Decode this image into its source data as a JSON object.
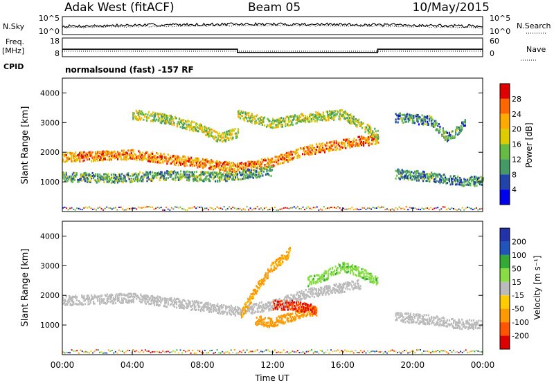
{
  "header": {
    "station": "Adak West (fitACF)",
    "beam": "Beam 05",
    "date": "10/May/2015"
  },
  "summary_panels": {
    "nsky_label": "N.Sky",
    "nsky_ticks": [
      "10^5",
      "10^0"
    ],
    "nsearch_label": "N.Search",
    "freq_label_line1": "Freq.",
    "freq_label_line2": "[MHz]",
    "freq_ticks": [
      "18",
      "8"
    ],
    "nave_label": "Nave",
    "nave_ticks": [
      "60",
      "0"
    ],
    "cpid_label": "CPID",
    "cpid_text": "normalsound (fast) -157 RF"
  },
  "chart_data": [
    {
      "type": "line",
      "panel": "freq",
      "ylabel": "Freq. [MHz]",
      "ylim": [
        8,
        18
      ],
      "x_hours": [
        0,
        10,
        10,
        18,
        18,
        24
      ],
      "values": [
        12,
        12,
        10.2,
        10.2,
        12,
        12
      ]
    },
    {
      "type": "heatmap",
      "panel": "power",
      "ylabel": "Slant Range [km]",
      "xlabel": "",
      "xlim_hours": [
        0,
        24
      ],
      "ylim": [
        0,
        4500
      ],
      "yticks": [
        "1000",
        "2000",
        "3000",
        "4000"
      ],
      "colorbar_label": "Power [dB]",
      "colorbar_ticks": [
        "28",
        "24",
        "20",
        "16",
        "12",
        "8",
        "4"
      ],
      "colors": [
        "#e00000",
        "#ff6600",
        "#ffaa00",
        "#ddcc00",
        "#66bb44",
        "#449966",
        "#2244aa",
        "#0000ee"
      ],
      "bands": [
        {
          "t": [
            0,
            4,
            8,
            10,
            12,
            14,
            17,
            18
          ],
          "range_km": [
            1850,
            1950,
            1650,
            1500,
            1700,
            2100,
            2400,
            2450
          ],
          "value_db": 20
        },
        {
          "t": [
            0,
            3,
            6,
            9,
            12
          ],
          "range_km": [
            1200,
            1150,
            1250,
            1200,
            1400
          ],
          "value_db": 8
        },
        {
          "t": [
            4,
            6,
            8,
            9,
            10
          ],
          "range_km": [
            3300,
            3150,
            2800,
            2500,
            2700
          ],
          "value_db": 12
        },
        {
          "t": [
            10,
            12,
            14,
            16,
            18
          ],
          "range_km": [
            3300,
            3000,
            3200,
            3300,
            2600
          ],
          "value_db": 12
        },
        {
          "t": [
            19,
            21,
            22,
            23,
            24
          ],
          "range_km": [
            1300,
            1200,
            1100,
            1050,
            1050
          ],
          "value_db": 6
        },
        {
          "t": [
            19,
            21,
            22,
            23
          ],
          "range_km": [
            3200,
            3100,
            2500,
            3000
          ],
          "value_db": 6
        }
      ]
    },
    {
      "type": "heatmap",
      "panel": "velocity",
      "ylabel": "Slant Range [km]",
      "xlabel": "Time UT",
      "xlim_hours": [
        0,
        24
      ],
      "ylim": [
        0,
        4500
      ],
      "yticks": [
        "1000",
        "2000",
        "3000",
        "4000"
      ],
      "xticks": [
        "00:00",
        "04:00",
        "08:00",
        "12:00",
        "16:00",
        "20:00",
        "00:00"
      ],
      "colorbar_label": "Velocity [m s⁻¹]",
      "colorbar_ticks": [
        "200",
        "100",
        "50",
        "15",
        "-15",
        "-50",
        "-100",
        "-200"
      ],
      "colors": [
        "#2233aa",
        "#2255bb",
        "#33aa33",
        "#88dd44",
        "#bbbbbb",
        "#ffcc00",
        "#ff9900",
        "#ff5500",
        "#dd0000"
      ],
      "bands": [
        {
          "t": [
            0,
            4,
            8,
            10,
            12,
            14,
            17
          ],
          "range_km": [
            1850,
            1950,
            1650,
            1500,
            1700,
            2100,
            2400
          ],
          "value_ms": 0
        },
        {
          "t": [
            10.2,
            11,
            12,
            13
          ],
          "range_km": [
            1400,
            2200,
            3000,
            3500
          ],
          "value_ms": -60
        },
        {
          "t": [
            11,
            12,
            13,
            14,
            14.5
          ],
          "range_km": [
            1200,
            1100,
            1300,
            1500,
            1500
          ],
          "value_ms": -80
        },
        {
          "t": [
            12,
            13,
            14,
            14.5
          ],
          "range_km": [
            1700,
            1700,
            1600,
            1500
          ],
          "value_ms": -200
        },
        {
          "t": [
            14,
            15,
            16,
            17,
            18
          ],
          "range_km": [
            2500,
            2700,
            3000,
            2800,
            2500
          ],
          "value_ms": 40
        },
        {
          "t": [
            19,
            21,
            22,
            23,
            24
          ],
          "range_km": [
            1300,
            1200,
            1100,
            1050,
            1050
          ],
          "value_ms": 0
        }
      ]
    }
  ]
}
